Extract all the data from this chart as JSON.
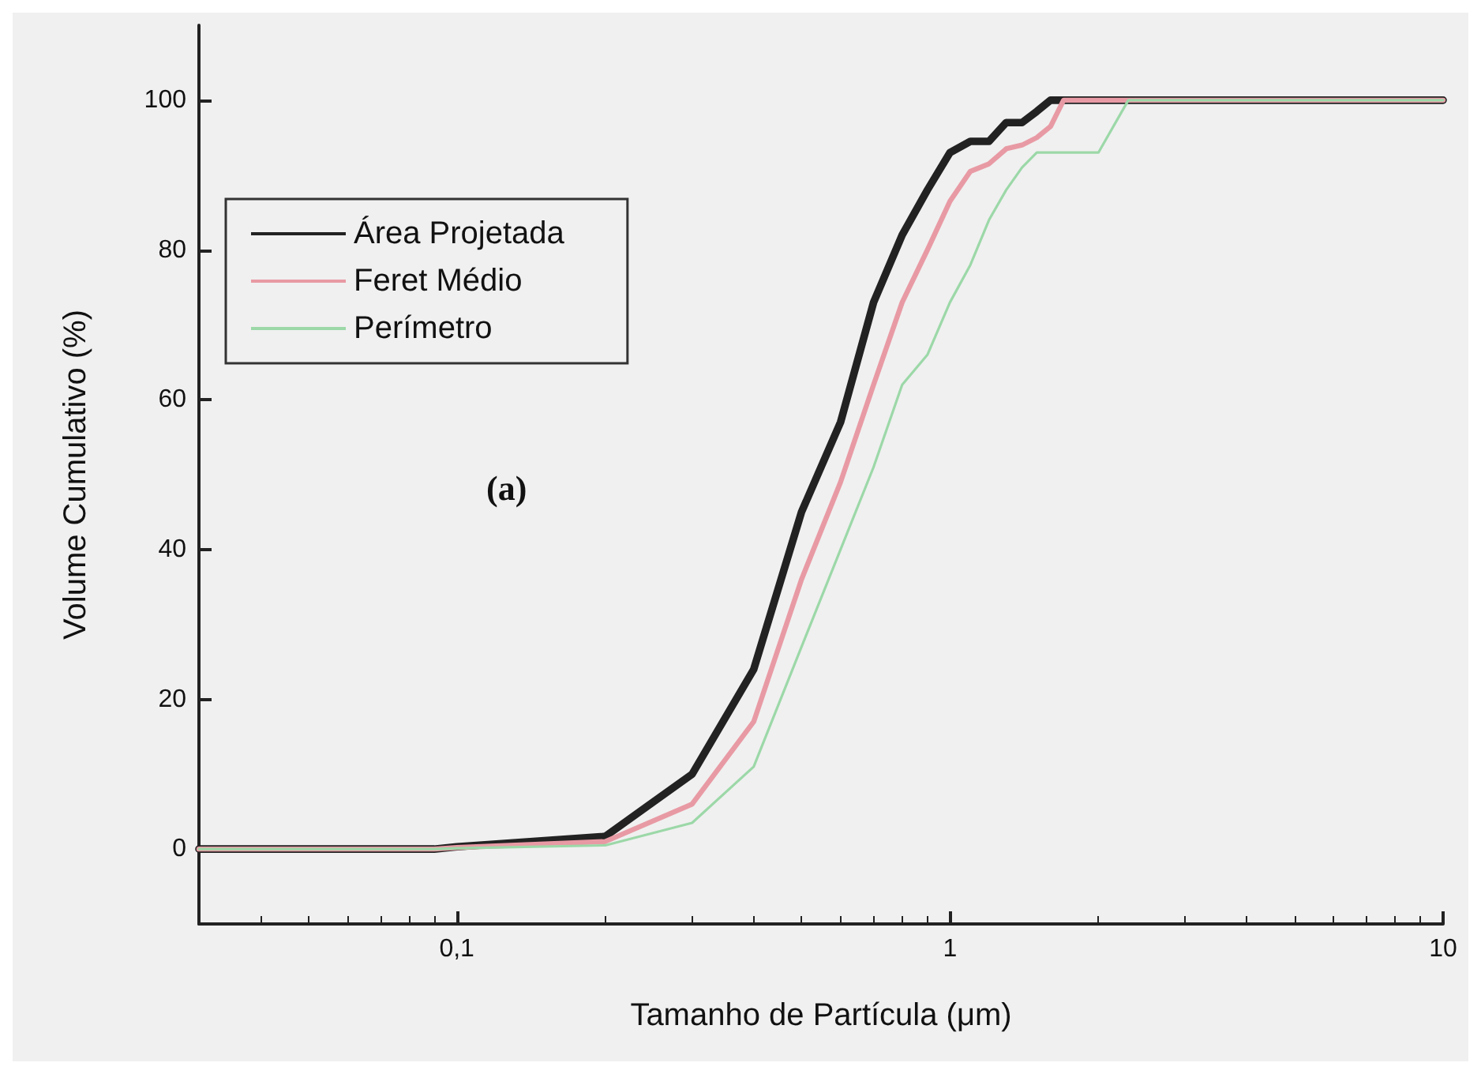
{
  "chart_data": {
    "type": "line",
    "xlabel": "Tamanho de Partícula (μm)",
    "ylabel": "Volume Cumulativo (%)",
    "annotations": [
      "(a)"
    ],
    "series": [
      {
        "name": "Área Projetada",
        "color": "#222222",
        "x": [
          0.03,
          0.09,
          0.1,
          0.2,
          0.3,
          0.4,
          0.5,
          0.6,
          0.7,
          0.8,
          0.9,
          1.0,
          1.1,
          1.2,
          1.3,
          1.4,
          1.5,
          1.6,
          10
        ],
        "values": [
          0,
          0,
          0.3,
          1.7,
          10,
          24,
          45,
          57,
          73,
          82,
          88,
          93,
          94.5,
          94.5,
          97,
          97,
          98.5,
          100,
          100
        ]
      },
      {
        "name": "Feret Médio",
        "color": "#e89aa4",
        "x": [
          0.03,
          0.09,
          0.1,
          0.2,
          0.3,
          0.4,
          0.5,
          0.6,
          0.7,
          0.8,
          0.9,
          1.0,
          1.1,
          1.2,
          1.3,
          1.4,
          1.5,
          1.6,
          1.7,
          10
        ],
        "values": [
          0,
          0,
          0.2,
          1,
          6,
          17,
          36,
          49,
          62,
          73,
          80,
          86.5,
          90.5,
          91.5,
          93.5,
          94,
          95,
          96.5,
          100,
          100
        ]
      },
      {
        "name": "Perímetro",
        "color": "#9cd8a8",
        "x": [
          0.03,
          0.09,
          0.1,
          0.2,
          0.3,
          0.4,
          0.5,
          0.6,
          0.7,
          0.8,
          0.9,
          1.0,
          1.1,
          1.2,
          1.3,
          1.4,
          1.5,
          2.0,
          2.3,
          10
        ],
        "values": [
          0,
          0,
          0.1,
          0.5,
          3.5,
          11,
          27,
          40,
          51,
          62,
          66,
          73,
          78,
          84,
          88,
          91,
          93,
          93,
          100,
          100
        ]
      }
    ],
    "log": "x",
    "xlim": [
      0.03,
      10
    ],
    "xticks": [
      {
        "value": 0.1,
        "label": "0,1"
      },
      1,
      10
    ],
    "ylim": [
      -10,
      110
    ],
    "yticks": [
      0,
      20,
      40,
      60,
      80,
      100
    ],
    "legend": "top left",
    "marker": "none",
    "line_style": "solid"
  }
}
